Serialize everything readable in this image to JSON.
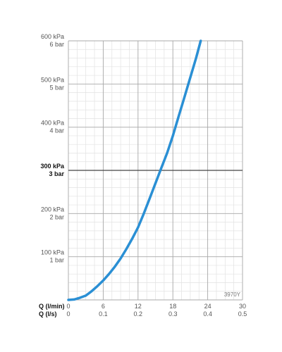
{
  "chart_data": {
    "type": "line",
    "code": "3970Y",
    "x_axes": [
      {
        "title": "Q (l/min)",
        "ticks": [
          "0",
          "6",
          "12",
          "18",
          "24",
          "30"
        ],
        "range": [
          0,
          30
        ]
      },
      {
        "title": "Q (l/s)",
        "ticks": [
          "0",
          "0.1",
          "0.2",
          "0.3",
          "0.4",
          "0.5"
        ],
        "range": [
          0,
          0.5
        ]
      }
    ],
    "y_axis": {
      "range_kpa": [
        0,
        600
      ],
      "labels": [
        {
          "kpa": "100 kPa",
          "bar": "1 bar",
          "value": 100,
          "bold": false
        },
        {
          "kpa": "200 kPa",
          "bar": "2 bar",
          "value": 200,
          "bold": false
        },
        {
          "kpa": "300 kPa",
          "bar": "3 bar",
          "value": 300,
          "bold": true
        },
        {
          "kpa": "400 kPa",
          "bar": "4 bar",
          "value": 400,
          "bold": false
        },
        {
          "kpa": "500 kPa",
          "bar": "5 bar",
          "value": 500,
          "bold": false
        },
        {
          "kpa": "600 kPa",
          "bar": "6 bar",
          "value": 600,
          "bold": false
        }
      ]
    },
    "grid": true,
    "series": [
      {
        "color": "#2a8fd4",
        "x_lpm": [
          0,
          1,
          2,
          3,
          4,
          5,
          6,
          7,
          8,
          9,
          10,
          11,
          12,
          13,
          14,
          15,
          16,
          17,
          18,
          19,
          20,
          21,
          22,
          23
        ],
        "y_kpa": [
          0,
          1,
          5,
          10,
          20,
          32,
          45,
          60,
          77,
          96,
          118,
          142,
          168,
          200,
          235,
          270,
          305,
          340,
          380,
          425,
          470,
          515,
          560,
          610
        ]
      }
    ]
  }
}
